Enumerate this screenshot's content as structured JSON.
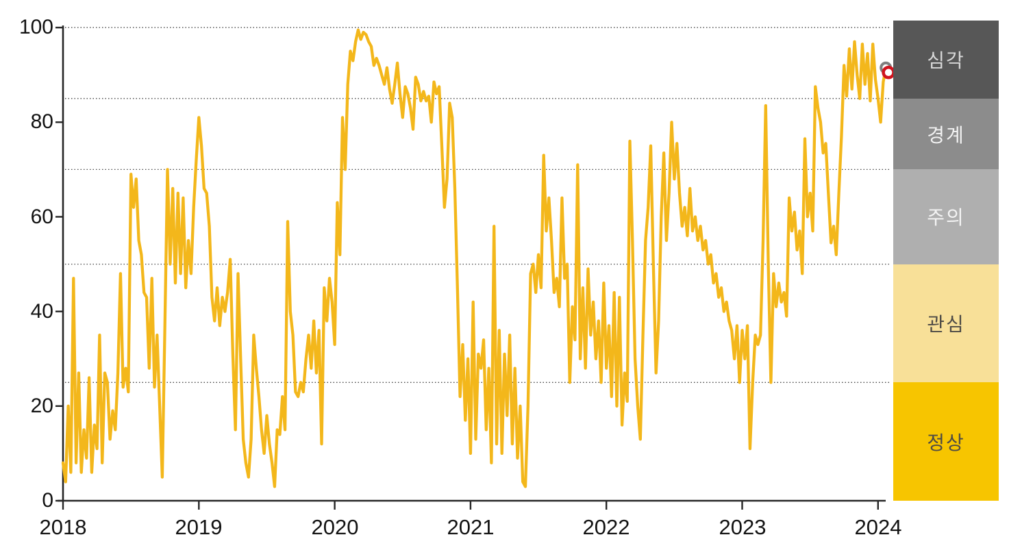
{
  "chart": {
    "y_axis": {
      "tick_labels": [
        "0",
        "20",
        "40",
        "60",
        "80",
        "100"
      ]
    },
    "x_axis": {
      "tick_labels": [
        "2018",
        "2019",
        "2020",
        "2021",
        "2022",
        "2023",
        "2024"
      ]
    },
    "risk_bands": [
      {
        "label": "심각",
        "min": 85,
        "max": 101.5,
        "color": "#575757",
        "text_color": "#D8D8D8"
      },
      {
        "label": "경계",
        "min": 70,
        "max": 85,
        "color": "#8C8C8C",
        "text_color": "#F2F2F2"
      },
      {
        "label": "주의",
        "min": 50,
        "max": 70,
        "color": "#AFAFAF",
        "text_color": "#F4F4F4"
      },
      {
        "label": "관심",
        "min": 25,
        "max": 50,
        "color": "#F8E098",
        "text_color": "#4E4B46"
      },
      {
        "label": "정상",
        "min": 0,
        "max": 25,
        "color": "#F7C500",
        "text_color": "#4E4B46"
      }
    ],
    "colors": {
      "line": "#F3B71B",
      "axis": "#262626",
      "gridline": "#444444",
      "previous_marker": "#7F7F7F",
      "latest_marker": "#D0141E",
      "background": "#FFFFFF"
    }
  },
  "chart_data": {
    "type": "line",
    "frequency": "weekly",
    "x_start_year": 2018,
    "points_per_year": 52,
    "x_tick_years": [
      2018,
      2019,
      2020,
      2021,
      2022,
      2023,
      2024
    ],
    "ylim": [
      0,
      100
    ],
    "gridlines_y": [
      25,
      50,
      70,
      85,
      100
    ],
    "grid": "dotted-horizontal",
    "legend_position": "right-column-bands",
    "risk_band_thresholds": {
      "정상": [
        0,
        25
      ],
      "관심": [
        25,
        50
      ],
      "주의": [
        50,
        70
      ],
      "경계": [
        70,
        85
      ],
      "심각": [
        85,
        100
      ]
    },
    "series": [
      {
        "name": "index",
        "color": "#F3B71B",
        "values": [
          8,
          4,
          20,
          6,
          47,
          8,
          27,
          6,
          15,
          9,
          26,
          6,
          16,
          11,
          35,
          8,
          27,
          25,
          13,
          19,
          15,
          27,
          48,
          24,
          28,
          23,
          69,
          62,
          68,
          55,
          52,
          44,
          43,
          28,
          47,
          24,
          35,
          20,
          5,
          37,
          70,
          50,
          66,
          46,
          65,
          48,
          64,
          45,
          55,
          48,
          62,
          72,
          81,
          75,
          66,
          65,
          58,
          43,
          38,
          45,
          37,
          43,
          40,
          44,
          51,
          31,
          15,
          48,
          30,
          13,
          8,
          5,
          13,
          35,
          28,
          22,
          15,
          10,
          18,
          12,
          8,
          3,
          15,
          14,
          22,
          15,
          59,
          40,
          35,
          23,
          22,
          25,
          23,
          30,
          35,
          28,
          38,
          27,
          36,
          12,
          45,
          38,
          47,
          42,
          33,
          63,
          52,
          81,
          70,
          88,
          95,
          93,
          97,
          99.5,
          97.5,
          99,
          98.5,
          97,
          96,
          92,
          93.5,
          92,
          90,
          88,
          91.5,
          87,
          84,
          88,
          92.5,
          86,
          81,
          87.5,
          86,
          83,
          78.5,
          89.5,
          88,
          84.5,
          86.5,
          84.5,
          85.5,
          80,
          88.5,
          86,
          87.5,
          75,
          62,
          68,
          84,
          81,
          66,
          45,
          22,
          33,
          17,
          30,
          10,
          42,
          13,
          31,
          28,
          34,
          15,
          28,
          8,
          58,
          12,
          36,
          10,
          31,
          18,
          35,
          12,
          28,
          9,
          20,
          4,
          3,
          20,
          48,
          50,
          44,
          52,
          45,
          73,
          57,
          64,
          55,
          44,
          47,
          41,
          64,
          47,
          50,
          25,
          41,
          34,
          71,
          30,
          45,
          28,
          49,
          35,
          42,
          30,
          38,
          25,
          46,
          28,
          37,
          22,
          44,
          20,
          43,
          16,
          27,
          21,
          76,
          55,
          30,
          20,
          13,
          35,
          55,
          62,
          75,
          50,
          27,
          38,
          60,
          73.5,
          55,
          65,
          80,
          68,
          75.5,
          65,
          58,
          62,
          56,
          66,
          57,
          60,
          55,
          58,
          53,
          55,
          50,
          52,
          46,
          48,
          43,
          45,
          40,
          42,
          38,
          36,
          30,
          37,
          25,
          36,
          30,
          37,
          11,
          25,
          35,
          33,
          35,
          55,
          83.5,
          50,
          25,
          48,
          41,
          46,
          42,
          44,
          39,
          64,
          57,
          61,
          53,
          57,
          48,
          76.5,
          60,
          65,
          57,
          87.5,
          83,
          80,
          73.5,
          75.5,
          65,
          54.5,
          58,
          52,
          65,
          77,
          92,
          85.5,
          95.5,
          87,
          97,
          90,
          85,
          96.5,
          88,
          94.5,
          84.5,
          96.5,
          89,
          85,
          80,
          88.5,
          91.5,
          90.5
        ]
      }
    ],
    "end_markers": [
      {
        "name": "previous-point",
        "value": 91.5,
        "style": "open-circle",
        "color": "#7F7F7F"
      },
      {
        "name": "latest-point",
        "value": 90.5,
        "style": "open-circle",
        "color": "#D0141E"
      }
    ]
  }
}
